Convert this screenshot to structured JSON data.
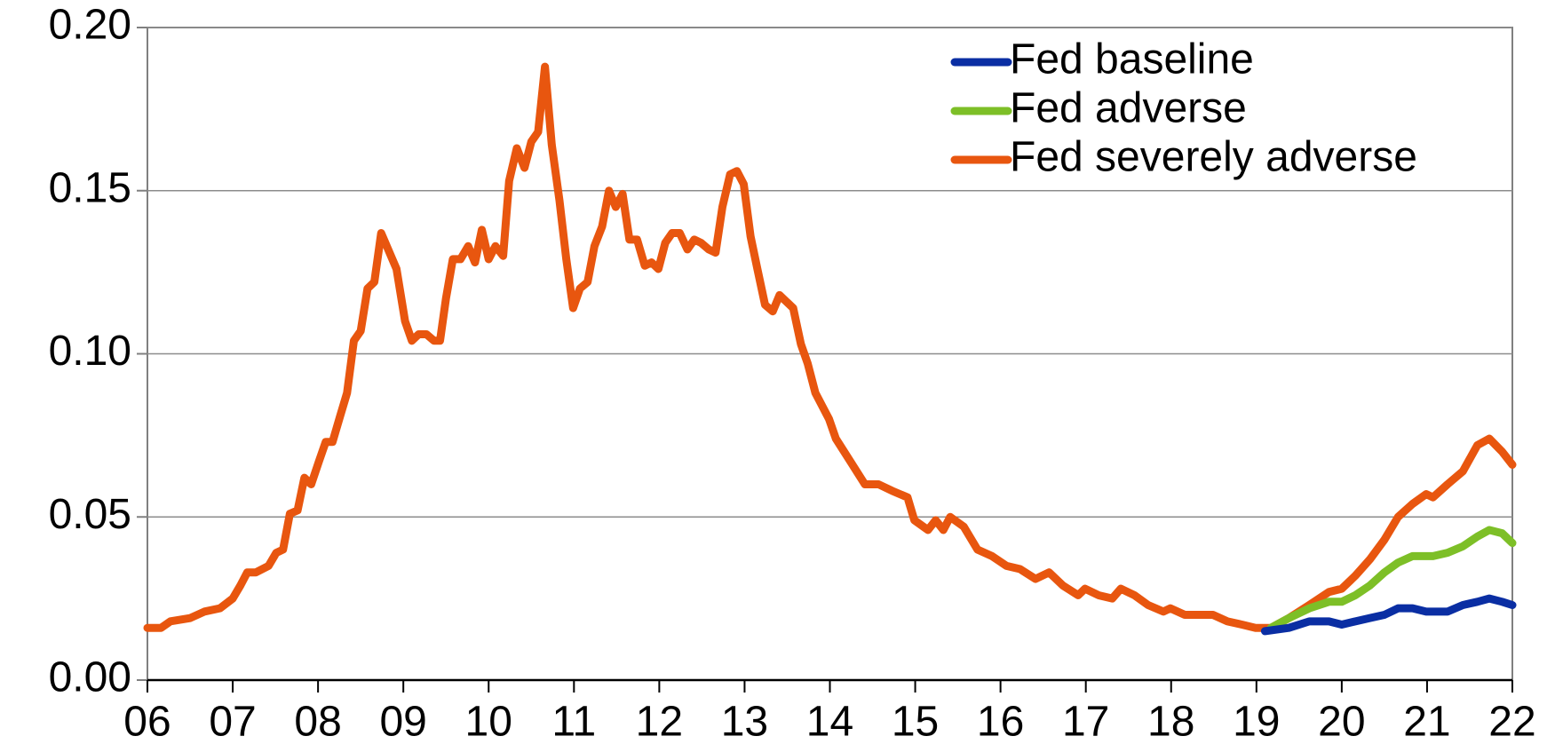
{
  "chart_data": {
    "type": "line",
    "xlim": [
      6,
      22
    ],
    "xticks": [
      {
        "value": 6,
        "label": "06"
      },
      {
        "value": 7,
        "label": "07"
      },
      {
        "value": 8,
        "label": "08"
      },
      {
        "value": 9,
        "label": "09"
      },
      10,
      11,
      12,
      13,
      14,
      15,
      16,
      17,
      18,
      19,
      20,
      21,
      22
    ],
    "ylim": [
      0,
      0.2
    ],
    "yticks": [
      {
        "value": 0,
        "label": "0.00"
      },
      0.05,
      {
        "value": 0.1,
        "label": "0.10"
      },
      0.15,
      {
        "value": 0.2,
        "label": "0.20"
      }
    ],
    "grid": true,
    "legend": "upper right",
    "series": [
      {
        "name": "Fed baseline",
        "color": "#0a2ea3",
        "x": [
          19.1,
          19.38,
          19.62,
          19.85,
          20.0,
          20.16,
          20.33,
          20.5,
          20.66,
          20.83,
          20.99,
          21.07,
          21.24,
          21.42,
          21.59,
          21.73,
          21.88,
          22.0
        ],
        "values": [
          0.015,
          0.016,
          0.018,
          0.018,
          0.017,
          0.018,
          0.019,
          0.02,
          0.022,
          0.022,
          0.021,
          0.021,
          0.021,
          0.023,
          0.024,
          0.025,
          0.024,
          0.023
        ]
      },
      {
        "name": "Fed adverse",
        "color": "#7dbf27",
        "x": [
          19.17,
          19.38,
          19.62,
          19.85,
          20.0,
          20.16,
          20.33,
          20.5,
          20.66,
          20.83,
          20.99,
          21.07,
          21.24,
          21.42,
          21.59,
          21.73,
          21.88,
          22.0
        ],
        "values": [
          0.016,
          0.019,
          0.022,
          0.024,
          0.024,
          0.026,
          0.029,
          0.033,
          0.036,
          0.038,
          0.038,
          0.038,
          0.039,
          0.041,
          0.044,
          0.046,
          0.045,
          0.042
        ]
      },
      {
        "name": "Fed severely adverse",
        "color": "#e8560f",
        "x": [
          6.0,
          6.16,
          6.27,
          6.5,
          6.67,
          6.85,
          7.0,
          7.09,
          7.17,
          7.27,
          7.42,
          7.51,
          7.59,
          7.67,
          7.76,
          7.84,
          7.92,
          8.01,
          8.09,
          8.17,
          8.26,
          8.34,
          8.42,
          8.5,
          8.58,
          8.66,
          8.74,
          8.92,
          9.02,
          9.1,
          9.18,
          9.27,
          9.36,
          9.43,
          9.5,
          9.58,
          9.67,
          9.76,
          9.84,
          9.92,
          10.0,
          10.08,
          10.17,
          10.24,
          10.33,
          10.42,
          10.5,
          10.58,
          10.66,
          10.74,
          10.83,
          10.91,
          10.99,
          11.07,
          11.16,
          11.24,
          11.33,
          11.41,
          11.49,
          11.57,
          11.65,
          11.74,
          11.83,
          11.91,
          11.99,
          12.07,
          12.15,
          12.24,
          12.33,
          12.41,
          12.49,
          12.58,
          12.66,
          12.74,
          12.83,
          12.91,
          12.99,
          13.07,
          13.15,
          13.24,
          13.33,
          13.41,
          13.49,
          13.57,
          13.66,
          13.74,
          13.83,
          13.91,
          13.99,
          14.07,
          14.24,
          14.41,
          14.57,
          14.73,
          14.91,
          14.99,
          15.15,
          15.24,
          15.33,
          15.41,
          15.57,
          15.73,
          15.9,
          16.07,
          16.23,
          16.41,
          16.57,
          16.73,
          16.91,
          16.99,
          17.15,
          17.31,
          17.41,
          17.57,
          17.73,
          17.91,
          17.99,
          18.16,
          18.33,
          18.49,
          18.66,
          18.83,
          18.99,
          19.17,
          19.38,
          19.62,
          19.85,
          20.0,
          20.16,
          20.33,
          20.5,
          20.66,
          20.83,
          20.99,
          21.07,
          21.24,
          21.42,
          21.59,
          21.73,
          21.88,
          22.0
        ],
        "values": [
          0.016,
          0.016,
          0.018,
          0.019,
          0.021,
          0.022,
          0.025,
          0.029,
          0.033,
          0.033,
          0.035,
          0.039,
          0.04,
          0.051,
          0.052,
          0.062,
          0.06,
          0.067,
          0.073,
          0.073,
          0.081,
          0.088,
          0.104,
          0.107,
          0.12,
          0.122,
          0.137,
          0.126,
          0.11,
          0.104,
          0.106,
          0.106,
          0.104,
          0.104,
          0.117,
          0.129,
          0.129,
          0.133,
          0.128,
          0.138,
          0.129,
          0.133,
          0.13,
          0.153,
          0.163,
          0.157,
          0.165,
          0.168,
          0.188,
          0.164,
          0.147,
          0.129,
          0.114,
          0.12,
          0.122,
          0.133,
          0.139,
          0.15,
          0.145,
          0.149,
          0.135,
          0.135,
          0.127,
          0.128,
          0.126,
          0.134,
          0.137,
          0.137,
          0.132,
          0.135,
          0.134,
          0.132,
          0.131,
          0.145,
          0.155,
          0.156,
          0.152,
          0.136,
          0.126,
          0.115,
          0.113,
          0.118,
          0.116,
          0.114,
          0.103,
          0.097,
          0.088,
          0.084,
          0.08,
          0.074,
          0.067,
          0.06,
          0.06,
          0.058,
          0.056,
          0.049,
          0.046,
          0.049,
          0.046,
          0.05,
          0.047,
          0.04,
          0.038,
          0.035,
          0.034,
          0.031,
          0.033,
          0.029,
          0.026,
          0.028,
          0.026,
          0.025,
          0.028,
          0.026,
          0.023,
          0.021,
          0.022,
          0.02,
          0.02,
          0.02,
          0.018,
          0.017,
          0.016,
          0.016,
          0.019,
          0.023,
          0.027,
          0.028,
          0.032,
          0.037,
          0.043,
          0.05,
          0.054,
          0.057,
          0.056,
          0.06,
          0.064,
          0.072,
          0.074,
          0.07,
          0.066
        ]
      }
    ]
  }
}
